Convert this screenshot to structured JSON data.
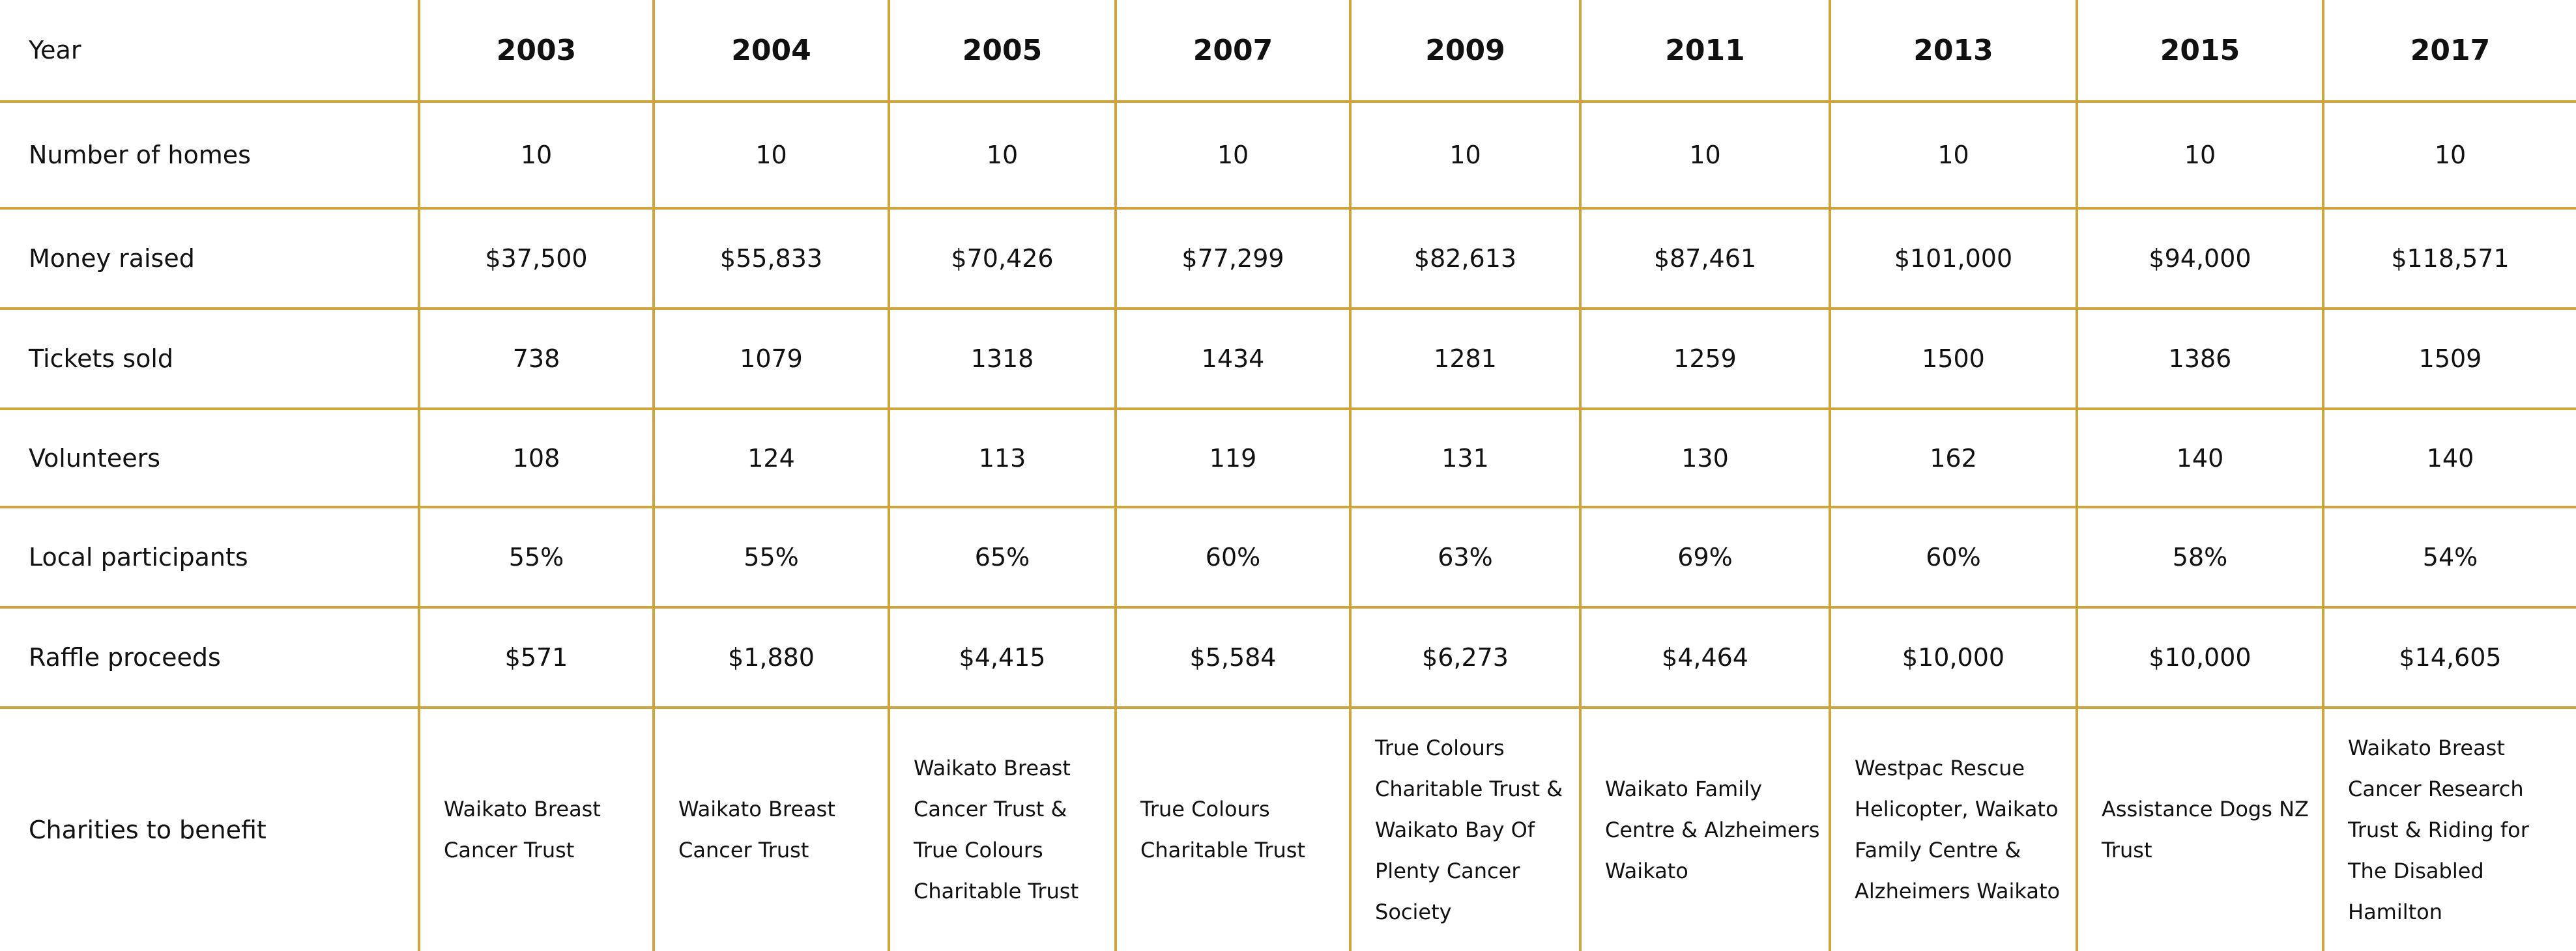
{
  "table": {
    "header": [
      "Year",
      "2003",
      "2004",
      "2005",
      "2007",
      "2009",
      "2011",
      "2013",
      "2015",
      "2017"
    ],
    "rows": [
      [
        "Number of homes",
        "10",
        "10",
        "10",
        "10",
        "10",
        "10",
        "10",
        "10",
        "10"
      ],
      [
        "Money raised",
        "$37,500",
        "$55,833",
        "$70,426",
        "$77,299",
        "$82,613",
        "$87,461",
        "$101,000",
        "$94,000",
        "$118,571"
      ],
      [
        "Tickets sold",
        "738",
        "1079",
        "1318",
        "1434",
        "1281",
        "1259",
        "1500",
        "1386",
        "1509"
      ],
      [
        "Volunteers",
        "108",
        "124",
        "113",
        "119",
        "131",
        "130",
        "162",
        "140",
        "140"
      ],
      [
        "Local participants",
        "55%",
        "55%",
        "65%",
        "60%",
        "63%",
        "69%",
        "60%",
        "58%",
        "54%"
      ],
      [
        "Raffle proceeds",
        "$571",
        "$1,880",
        "$4,415",
        "$5,584",
        "$6,273",
        "$4,464",
        "$10,000",
        "$10,000",
        "$14,605"
      ],
      [
        "Charities to benefit",
        "Waikato Breast Cancer Trust",
        "Waikato Breast Cancer Trust",
        "Waikato Breast Cancer Trust & True Colours Charitable Trust",
        "True Colours Charitable Trust",
        "True Colours Charitable Trust & Waikato Bay Of Plenty Cancer Society",
        "Waikato Family Centre & Alzheimers Waikato",
        "Westpac Rescue Helicopter, Waikato Family Centre & Alzheimers Waikato",
        "Assistance Dogs NZ Trust",
        "Waikato Breast Cancer Research Trust & Riding for The Disabled Hamilton"
      ]
    ]
  }
}
